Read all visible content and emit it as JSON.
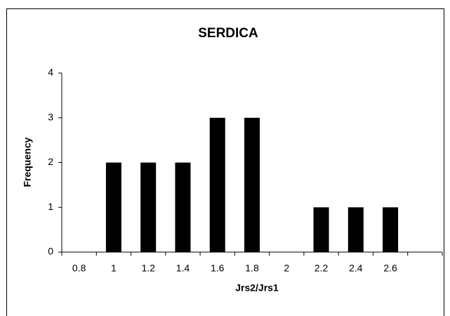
{
  "chart_data": {
    "type": "bar",
    "title": "SERDICA",
    "x_label": "Jrs2/Jrs1",
    "y_label": "Frequency",
    "categories": [
      "0.8",
      "1",
      "1.2",
      "1.4",
      "1.6",
      "1.8",
      "2",
      "2.2",
      "2.4",
      "2.6",
      null
    ],
    "values": [
      0,
      2,
      2,
      2,
      3,
      3,
      0,
      1,
      1,
      1,
      0
    ],
    "color": "#000000",
    "ylim": [
      0,
      4
    ],
    "yticks": [
      0,
      1,
      2,
      3,
      4
    ],
    "grid": false
  }
}
